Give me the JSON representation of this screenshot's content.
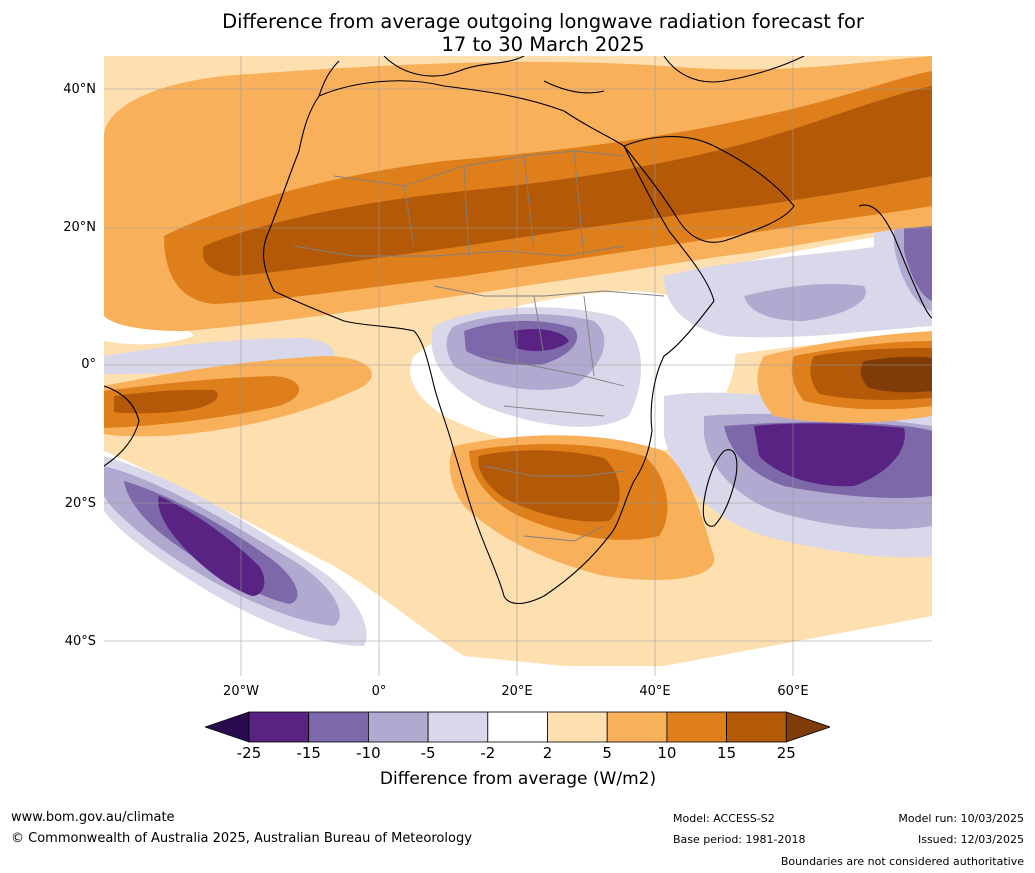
{
  "title": {
    "line1": "Difference from average outgoing longwave radiation forecast for",
    "line2": "17 to 30 March 2025"
  },
  "map": {
    "lat_labels": [
      "40°N",
      "20°N",
      "0°",
      "20°S",
      "40°S"
    ],
    "lon_labels": [
      "20°W",
      "0°",
      "20°E",
      "40°E",
      "60°E"
    ]
  },
  "colorbar": {
    "title": "Difference from average (W/m2)",
    "ticks": [
      "-25",
      "-15",
      "-10",
      "-5",
      "-2",
      "2",
      "5",
      "10",
      "15",
      "25"
    ],
    "colors": [
      "#2a0a4f",
      "#582383",
      "#7d69a9",
      "#b1a9d0",
      "#d8d8ea",
      "#ffffff",
      "#fddfb0",
      "#f9b05b",
      "#de7f1b",
      "#b45908",
      "#7f3b08"
    ]
  },
  "footer": {
    "website": "www.bom.gov.au/climate",
    "copyright": "© Commonwealth of Australia 2025, Australian Bureau of Meteorology",
    "model": "Model: ACCESS-S2",
    "base_period": "Base period: 1981-2018",
    "model_run": "Model run: 10/03/2025",
    "issued": "Issued: 12/03/2025",
    "boundaries_note": "Boundaries are not considered authoritative"
  }
}
